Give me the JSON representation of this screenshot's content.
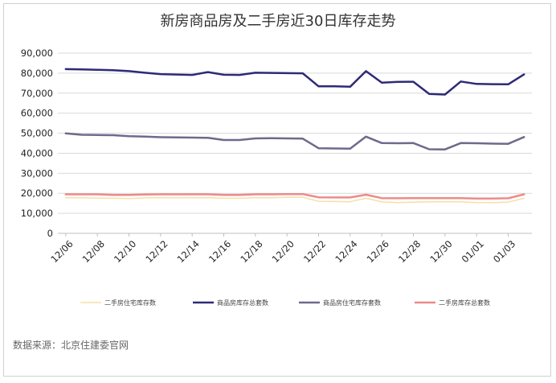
{
  "chart_data": {
    "type": "line",
    "title": "新房商品房及二手房近30日库存走势",
    "xlabel": "",
    "ylabel": "",
    "ylim": [
      0,
      90000
    ],
    "yticks": [
      "0",
      "10,000",
      "20,000",
      "30,000",
      "40,000",
      "50,000",
      "60,000",
      "70,000",
      "80,000",
      "90,000"
    ],
    "grid": true,
    "legend_position": "bottom",
    "tick_labels": [
      "12/06",
      "12/08",
      "12/10",
      "12/12",
      "12/14",
      "12/16",
      "12/18",
      "12/20",
      "12/22",
      "12/24",
      "12/26",
      "12/28",
      "12/30",
      "01/01",
      "01/03"
    ],
    "x": [
      "12/06",
      "12/07",
      "12/08",
      "12/09",
      "12/10",
      "12/11",
      "12/12",
      "12/13",
      "12/14",
      "12/15",
      "12/16",
      "12/17",
      "12/18",
      "12/19",
      "12/20",
      "12/21",
      "12/22",
      "12/23",
      "12/24",
      "12/25",
      "12/26",
      "12/27",
      "12/28",
      "12/29",
      "12/30",
      "12/31",
      "01/01",
      "01/02",
      "01/03",
      "01/04"
    ],
    "series": [
      {
        "name": "二手房住宅库存数",
        "color": "#f7dfa6",
        "width": 1.5,
        "values": [
          17800,
          17700,
          17600,
          17500,
          17400,
          17700,
          17800,
          17700,
          17800,
          17800,
          17500,
          17500,
          17800,
          17800,
          18000,
          18000,
          16000,
          15900,
          15800,
          17500,
          15700,
          15400,
          15600,
          15700,
          15700,
          15700,
          15400,
          15300,
          15600,
          17500
        ]
      },
      {
        "name": "商品房库存总套数",
        "color": "#2e2a78",
        "width": 2.5,
        "values": [
          82000,
          81900,
          81700,
          81500,
          81000,
          80200,
          79500,
          79300,
          79100,
          80500,
          79200,
          79100,
          80200,
          80100,
          80000,
          79900,
          73400,
          73400,
          73200,
          81000,
          75200,
          75600,
          75700,
          69600,
          69300,
          75800,
          74600,
          74500,
          74400,
          79400
        ]
      },
      {
        "name": "商品房住宅库存套数",
        "color": "#6d6a8c",
        "width": 2.5,
        "values": [
          49900,
          49200,
          49100,
          49000,
          48500,
          48300,
          48000,
          47900,
          47800,
          47700,
          46600,
          46600,
          47400,
          47500,
          47400,
          47300,
          42500,
          42400,
          42300,
          48300,
          45100,
          45000,
          45100,
          42000,
          41900,
          45100,
          45000,
          44800,
          44700,
          48100
        ]
      },
      {
        "name": "二手房库存总套数",
        "color": "#ec8b8b",
        "width": 2.5,
        "values": [
          19500,
          19500,
          19500,
          19200,
          19200,
          19400,
          19500,
          19500,
          19500,
          19500,
          19200,
          19200,
          19500,
          19500,
          19600,
          19600,
          18000,
          17900,
          17900,
          19300,
          17600,
          17500,
          17600,
          17600,
          17600,
          17600,
          17400,
          17400,
          17500,
          19500
        ]
      }
    ]
  },
  "source_note": "数据来源：北京住建委官网"
}
